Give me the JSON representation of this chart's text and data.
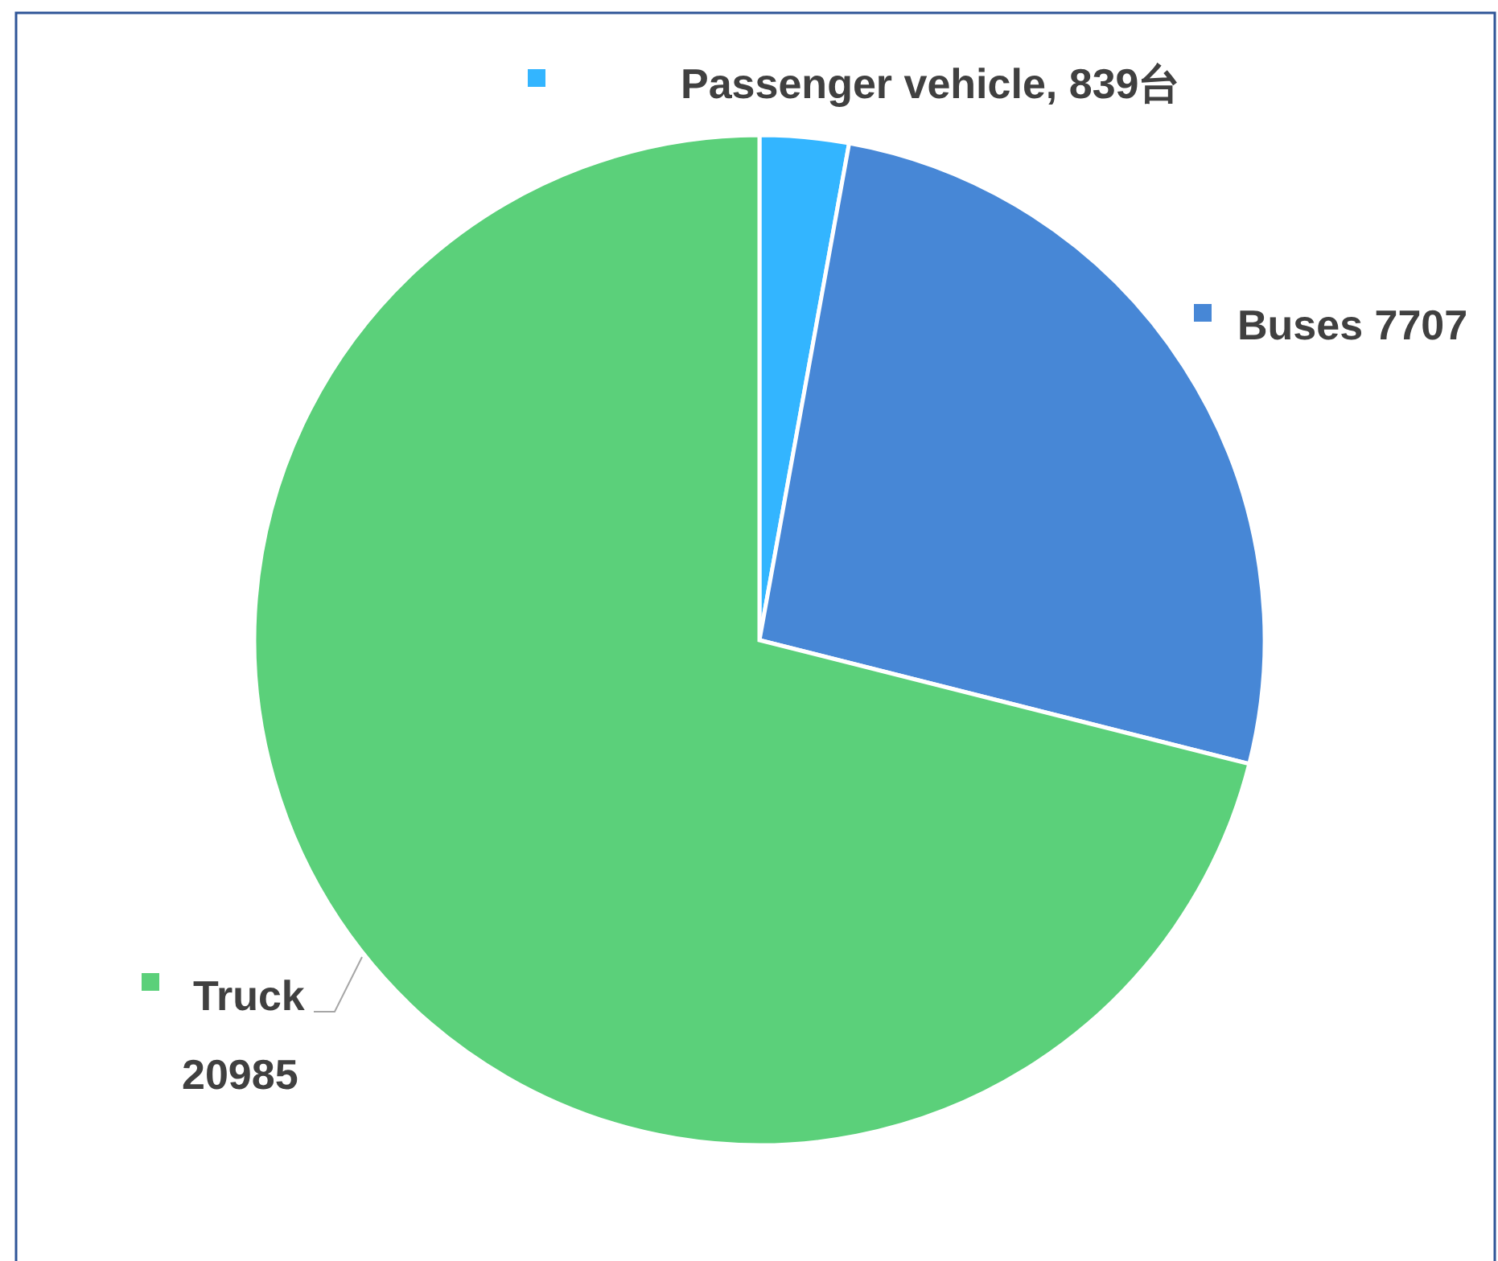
{
  "chart_data": {
    "type": "pie",
    "categories": [
      "Passenger vehicle",
      "Buses",
      "Truck"
    ],
    "values": [
      839,
      7707,
      20985
    ],
    "colors": [
      "#33b5ff",
      "#4787d6",
      "#5bd07a"
    ],
    "value_labels": [
      "839台",
      "7707",
      "20985"
    ],
    "legend": "right"
  }
}
